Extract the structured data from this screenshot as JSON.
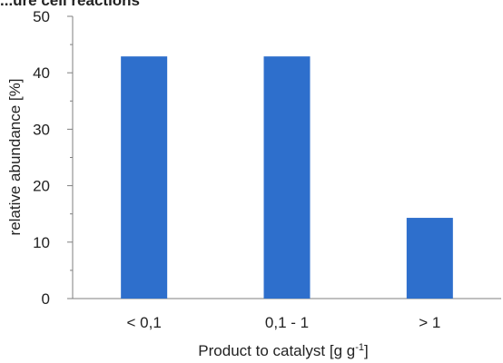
{
  "chart_data": {
    "type": "bar",
    "title": "...ure cell reactions",
    "categories": [
      "< 0,1",
      "0,1 - 1",
      "> 1"
    ],
    "values": [
      42.9,
      42.9,
      14.3
    ],
    "xlabel": "Product to catalyst [g g",
    "xlabel_superscript": "-1",
    "xlabel_suffix": "]",
    "ylabel": "relative abundance [%]",
    "ylim": [
      0,
      50
    ],
    "yticks": [
      "0",
      "10",
      "20",
      "30",
      "40",
      "50"
    ],
    "ytick_values": [
      0,
      10,
      20,
      30,
      40,
      50
    ],
    "bar_color": "#2e6fcc",
    "axis_color": "#7f7f7f",
    "grid": false,
    "legend": "none"
  }
}
